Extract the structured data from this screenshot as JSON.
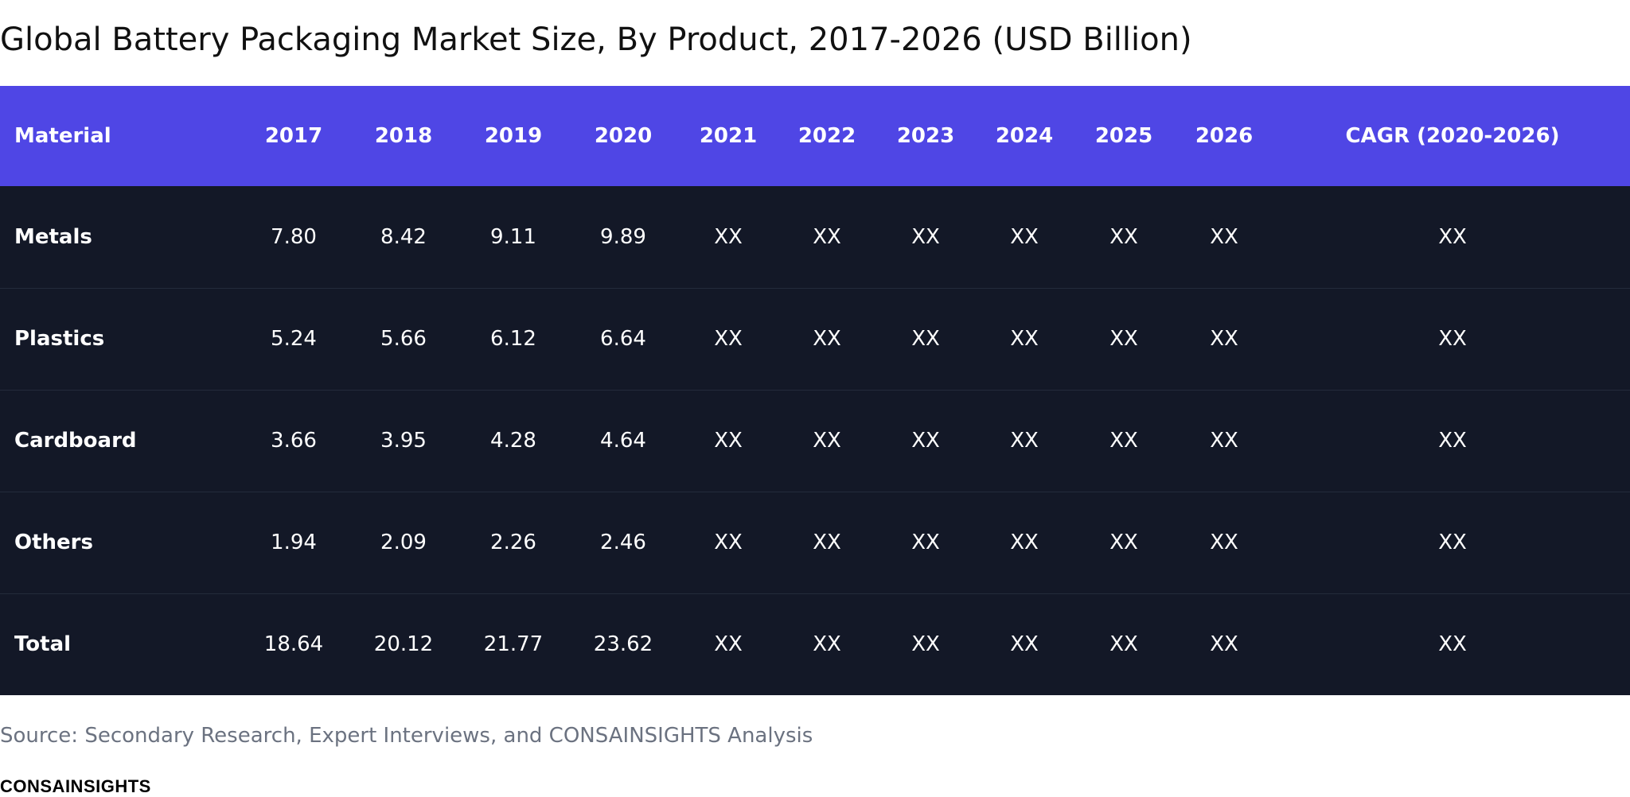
{
  "chart_data": {
    "type": "table",
    "title": "Global Battery Packaging Market Size, By Product, 2017-2026 (USD Billion)",
    "columns": [
      "Material",
      "2017",
      "2018",
      "2019",
      "2020",
      "2021",
      "2022",
      "2023",
      "2024",
      "2025",
      "2026",
      "CAGR (2020-2026)"
    ],
    "rows": [
      [
        "Metals",
        "7.80",
        "8.42",
        "9.11",
        "9.89",
        "XX",
        "XX",
        "XX",
        "XX",
        "XX",
        "XX",
        "XX"
      ],
      [
        "Plastics",
        "5.24",
        "5.66",
        "6.12",
        "6.64",
        "XX",
        "XX",
        "XX",
        "XX",
        "XX",
        "XX",
        "XX"
      ],
      [
        "Cardboard",
        "3.66",
        "3.95",
        "4.28",
        "4.64",
        "XX",
        "XX",
        "XX",
        "XX",
        "XX",
        "XX",
        "XX"
      ],
      [
        "Others",
        "1.94",
        "2.09",
        "2.26",
        "2.46",
        "XX",
        "XX",
        "XX",
        "XX",
        "XX",
        "XX",
        "XX"
      ],
      [
        "Total",
        "18.64",
        "20.12",
        "21.77",
        "23.62",
        "XX",
        "XX",
        "XX",
        "XX",
        "XX",
        "XX",
        "XX"
      ]
    ],
    "colors": {
      "header_bg": "#4f46e5",
      "body_bg": "#131827",
      "text": "#ffffff"
    }
  },
  "source": "Source: Secondary Research, Expert Interviews, and CONSAINSIGHTS Analysis",
  "brand": "CONSAINSIGHTS"
}
